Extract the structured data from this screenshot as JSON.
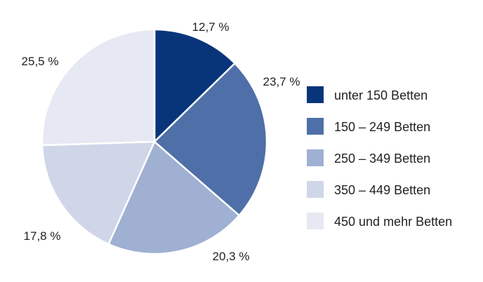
{
  "chart_data": {
    "type": "pie",
    "title": "",
    "legend_position": "right",
    "slices": [
      {
        "label": "unter 150 Betten",
        "value": 12.7,
        "value_label": "12,7 %",
        "color": "#08357a"
      },
      {
        "label": "150 – 249 Betten",
        "value": 23.7,
        "value_label": "23,7 %",
        "color": "#4f6fa8"
      },
      {
        "label": "250 – 349 Betten",
        "value": 20.3,
        "value_label": "20,3 %",
        "color": "#9fb0d2"
      },
      {
        "label": "350 – 449 Betten",
        "value": 17.8,
        "value_label": "17,8 %",
        "color": "#cfd6e8"
      },
      {
        "label": "450 und mehr Betten",
        "value": 25.5,
        "value_label": "25,5 %",
        "color": "#e6e9f3"
      }
    ]
  }
}
